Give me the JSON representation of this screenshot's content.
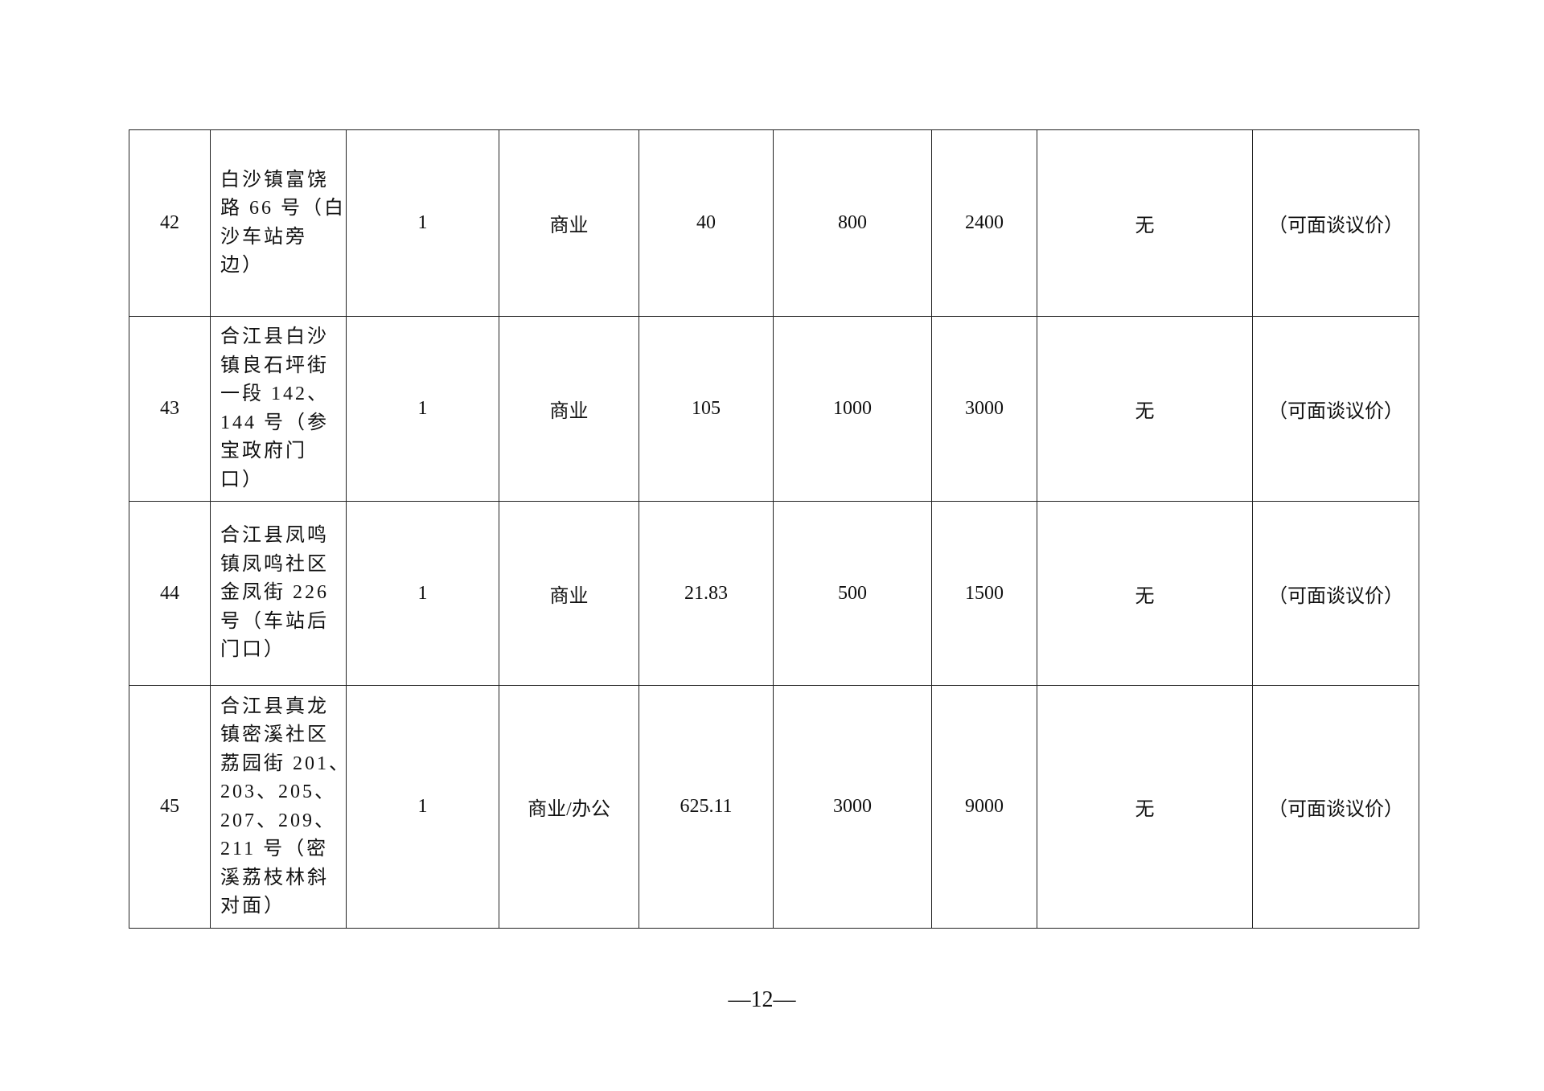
{
  "rows": [
    {
      "no": "42",
      "address_lines": [
        "白沙镇富饶",
        "路 66 号（白",
        "沙车站旁",
        "边）"
      ],
      "count": "1",
      "use": "商业",
      "area": "40",
      "rent": "800",
      "deposit": "2400",
      "note": "无",
      "price": "（可面谈议价）"
    },
    {
      "no": "43",
      "address_lines": [
        "合江县白沙",
        "镇良石坪街",
        "一段 142、",
        "144 号（参",
        "宝政府门",
        "口）"
      ],
      "count": "1",
      "use": "商业",
      "area": "105",
      "rent": "1000",
      "deposit": "3000",
      "note": "无",
      "price": "（可面谈议价）"
    },
    {
      "no": "44",
      "address_lines": [
        "合江县凤鸣",
        "镇凤鸣社区",
        "金凤街 226",
        "号（车站后",
        "门口）"
      ],
      "count": "1",
      "use": "商业",
      "area": "21.83",
      "rent": "500",
      "deposit": "1500",
      "note": "无",
      "price": "（可面谈议价）"
    },
    {
      "no": "45",
      "address_lines": [
        "合江县真龙",
        "镇密溪社区",
        "荔园街 201、",
        "203、205、",
        "207、209、",
        "211 号（密",
        "溪荔枝林斜",
        "对面）"
      ],
      "count": "1",
      "use": "商业/办公",
      "area": "625.11",
      "rent": "3000",
      "deposit": "9000",
      "note": "无",
      "price": "（可面谈议价）"
    }
  ],
  "page_number": "—12—"
}
